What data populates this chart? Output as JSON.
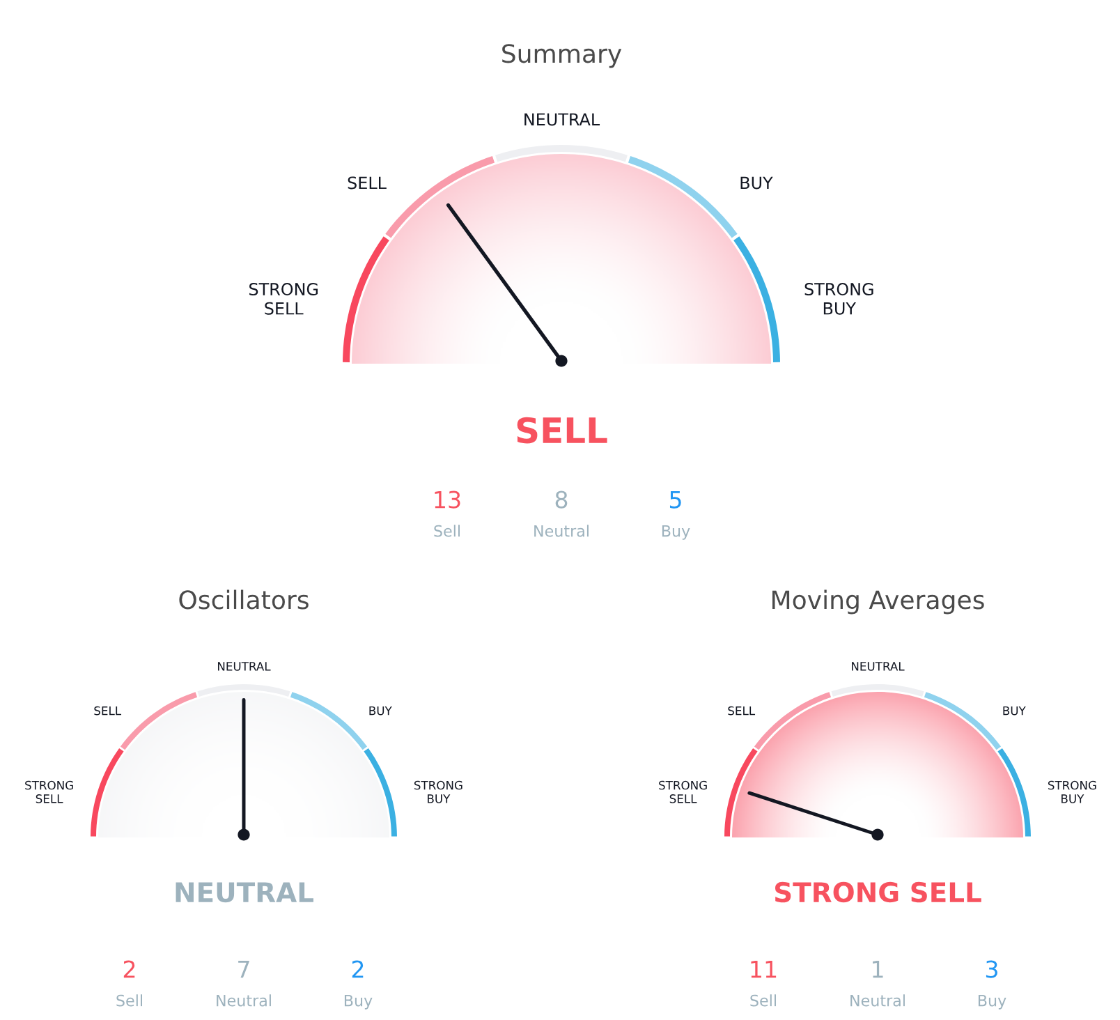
{
  "chart_data": [
    {
      "type": "donut",
      "title": "Summary",
      "categories": [
        "STRONG\nSELL",
        "SELL",
        "NEUTRAL",
        "BUY",
        "STRONG\nBUY"
      ],
      "values": [
        20,
        20,
        20,
        20,
        20
      ],
      "colors": [
        "#f8485e",
        "#f99bab",
        "#eeeff2",
        "#8fd2ee",
        "#3bb0e2"
      ],
      "needle": "SELL",
      "annotations": [
        "SELL",
        "13",
        "Sell",
        "8",
        "Neutral",
        "5",
        "Buy"
      ]
    },
    {
      "type": "donut",
      "title": "Oscillators",
      "categories": [
        "STRONG\nSELL",
        "SELL",
        "NEUTRAL",
        "BUY",
        "STRONG\nBUY"
      ],
      "values": [
        20,
        20,
        20,
        20,
        20
      ],
      "colors": [
        "#f8485e",
        "#f99bab",
        "#eeeff2",
        "#8fd2ee",
        "#3bb0e2"
      ],
      "needle": "NEUTRAL",
      "annotations": [
        "NEUTRAL",
        "2",
        "Sell",
        "7",
        "Neutral",
        "2",
        "Buy"
      ]
    },
    {
      "type": "donut",
      "title": "Moving Averages",
      "categories": [
        "STRONG\nSELL",
        "SELL",
        "NEUTRAL",
        "BUY",
        "STRONG\nBUY"
      ],
      "values": [
        20,
        20,
        20,
        20,
        20
      ],
      "colors": [
        "#f8485e",
        "#f99bab",
        "#eeeff2",
        "#8fd2ee",
        "#3bb0e2"
      ],
      "needle": "STRONG\nSELL",
      "annotations": [
        "STRONG SELL",
        "11",
        "Sell",
        "1",
        "Neutral",
        "3",
        "Buy"
      ]
    }
  ]
}
